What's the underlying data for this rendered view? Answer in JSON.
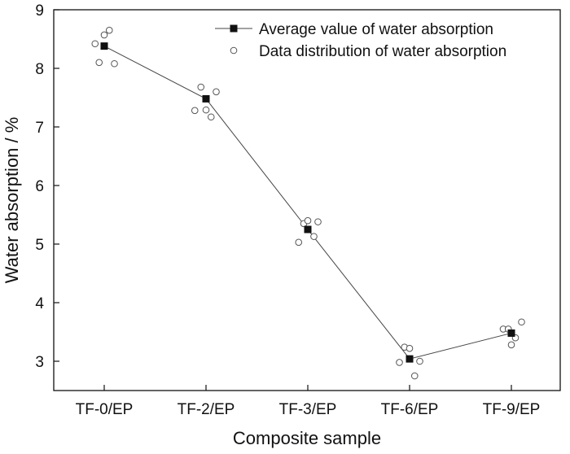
{
  "chart_data": {
    "type": "line",
    "xlabel": "Composite sample",
    "ylabel": "Water absorption / %",
    "categories": [
      "TF-0/EP",
      "TF-2/EP",
      "TF-3/EP",
      "TF-6/EP",
      "TF-9/EP"
    ],
    "ylim": [
      2.5,
      9
    ],
    "yticks": [
      3,
      4,
      5,
      6,
      7,
      8,
      9
    ],
    "grid": false,
    "legend_position": "top-right",
    "series": [
      {
        "name": "Average value of water absorption",
        "marker": "filled-square",
        "values": [
          8.38,
          7.48,
          5.25,
          3.04,
          3.48
        ]
      },
      {
        "name": "Data distribution of water absorption",
        "marker": "open-circle",
        "points": [
          [
            [
              -0.09,
              8.42
            ],
            [
              -0.05,
              8.1
            ],
            [
              0.0,
              8.57
            ],
            [
              0.05,
              8.65
            ],
            [
              0.1,
              8.08
            ]
          ],
          [
            [
              -0.11,
              7.28
            ],
            [
              -0.05,
              7.68
            ],
            [
              0.0,
              7.29
            ],
            [
              0.05,
              7.17
            ],
            [
              0.1,
              7.6
            ]
          ],
          [
            [
              -0.09,
              5.03
            ],
            [
              -0.04,
              5.35
            ],
            [
              0.0,
              5.4
            ],
            [
              0.06,
              5.13
            ],
            [
              0.1,
              5.38
            ]
          ],
          [
            [
              -0.1,
              2.98
            ],
            [
              -0.05,
              3.24
            ],
            [
              0.0,
              3.22
            ],
            [
              0.05,
              2.75
            ],
            [
              0.1,
              3.0
            ]
          ],
          [
            [
              -0.08,
              3.55
            ],
            [
              -0.03,
              3.55
            ],
            [
              0.0,
              3.28
            ],
            [
              0.04,
              3.4
            ],
            [
              0.1,
              3.67
            ]
          ]
        ]
      }
    ]
  }
}
